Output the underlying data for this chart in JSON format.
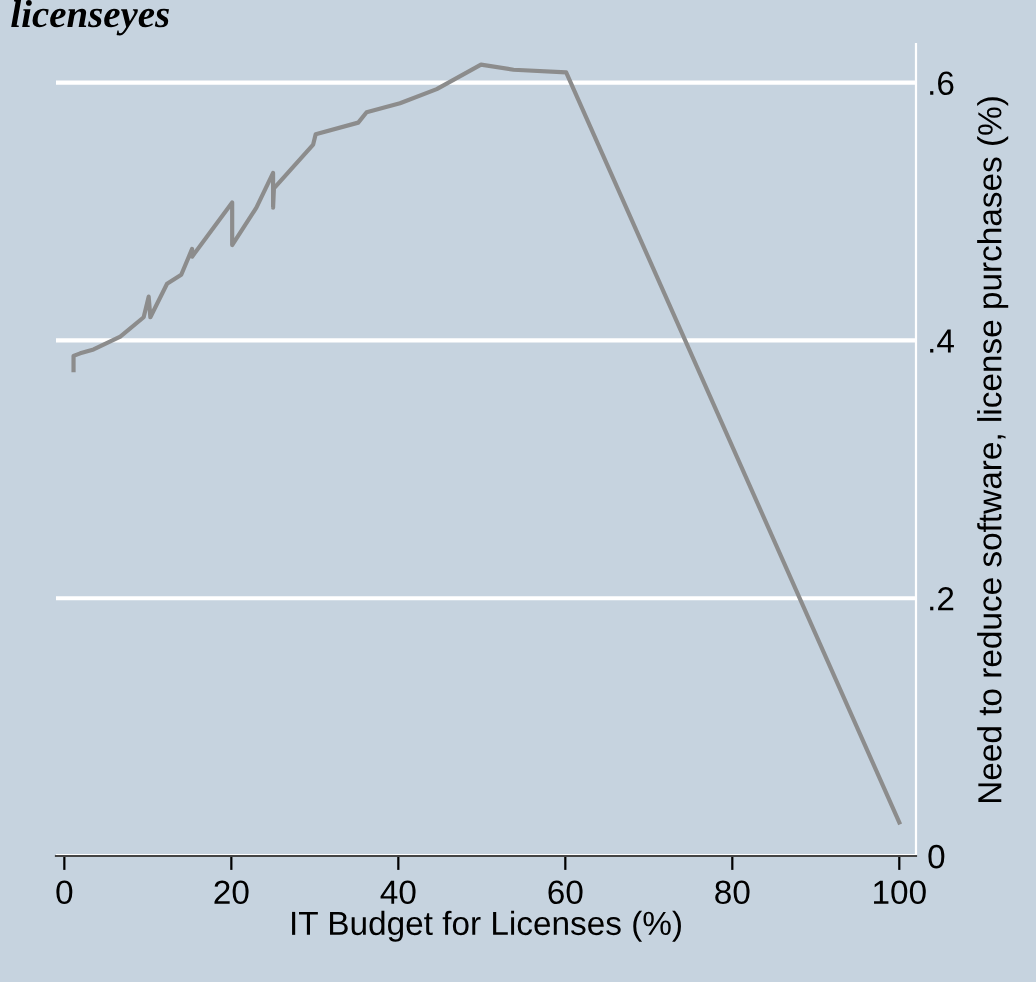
{
  "chart_data": {
    "type": "line",
    "title": "licenseyes",
    "xlabel": "IT Budget for Licenses (%)",
    "ylabel": "Need to reduce software, license purchases (%)",
    "x": [
      1.1,
      1.1,
      1.9,
      3.5,
      6.7,
      9.5,
      10.1,
      10.3,
      12.3,
      14.0,
      15.3,
      15.3,
      20.1,
      20.1,
      23.0,
      25.0,
      25.0,
      25.1,
      29.8,
      30.1,
      35.2,
      36.2,
      40.2,
      44.6,
      49.9,
      53.8,
      60.1,
      100
    ],
    "series": [
      {
        "color": "#8c8c8c",
        "values": [
          0.377,
          0.388,
          0.39,
          0.393,
          0.403,
          0.418,
          0.434,
          0.418,
          0.444,
          0.451,
          0.471,
          0.465,
          0.507,
          0.474,
          0.503,
          0.53,
          0.503,
          0.518,
          0.552,
          0.56,
          0.569,
          0.577,
          0.584,
          0.595,
          0.614,
          0.61,
          0.608,
          0.026
        ]
      }
    ],
    "xlim": [
      -1,
      102
    ],
    "ylim": [
      0,
      0.63
    ],
    "xticks": [
      0,
      20,
      40,
      60,
      80,
      100
    ],
    "yticks": [
      0,
      {
        "value": 0.2,
        "label": ".2"
      },
      {
        "value": 0.4,
        "label": ".4"
      },
      {
        "value": 0.6,
        "label": ".6"
      }
    ],
    "grid": "y",
    "legend": false,
    "marker": "none",
    "line_style": "solid"
  }
}
